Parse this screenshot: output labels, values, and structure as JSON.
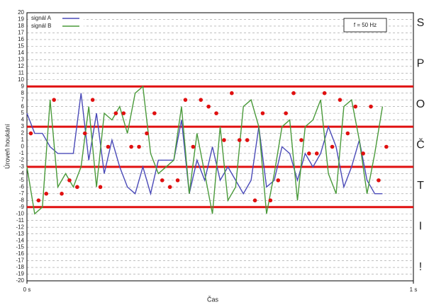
{
  "chart_data": {
    "type": "line",
    "xlabel": "Čas",
    "ylabel": "Úroveň houkání",
    "x": [
      0,
      0.02,
      0.04,
      0.06,
      0.08,
      0.1,
      0.12,
      0.14,
      0.16,
      0.18,
      0.2,
      0.22,
      0.24,
      0.26,
      0.28,
      0.3,
      0.32,
      0.34,
      0.36,
      0.38,
      0.4,
      0.42,
      0.44,
      0.46,
      0.48,
      0.5,
      0.52,
      0.54,
      0.56,
      0.58,
      0.6,
      0.62,
      0.64,
      0.66,
      0.68,
      0.7,
      0.72,
      0.74,
      0.76,
      0.78,
      0.8,
      0.82,
      0.84,
      0.86,
      0.88,
      0.9,
      0.92
    ],
    "series": [
      {
        "name": "signál A",
        "color": "#4a4ab8",
        "values": [
          5,
          2,
          2,
          0,
          -1,
          -1,
          -1,
          8,
          -2,
          5,
          -4,
          1,
          -3,
          -6,
          -7,
          -3,
          -7,
          -2,
          -2,
          -2,
          4,
          -7,
          -2,
          -5,
          0,
          -5,
          -3,
          -5,
          -7,
          -5,
          3,
          -6,
          -5,
          0,
          -1,
          -5,
          -1,
          -3,
          -1,
          3,
          0,
          -6,
          -3,
          1,
          -5,
          -7,
          -7
        ]
      },
      {
        "name": "signál B",
        "color": "#4a9a3a",
        "values": [
          -3,
          -10,
          -9,
          7,
          -6,
          -4,
          -6,
          -3,
          6,
          -6,
          5,
          4,
          6,
          2,
          8,
          9,
          -1,
          -4,
          -3,
          -2,
          6,
          -7,
          2,
          -4,
          -10,
          3,
          -8,
          -6,
          6,
          7,
          3,
          -10,
          -4,
          3,
          4,
          -8,
          3,
          4,
          7,
          -4,
          -7,
          6,
          7,
          1,
          -7,
          -1,
          6
        ]
      }
    ],
    "points": {
      "color": "#e01010",
      "x": [
        0.01,
        0.03,
        0.05,
        0.07,
        0.09,
        0.11,
        0.13,
        0.15,
        0.17,
        0.19,
        0.21,
        0.23,
        0.25,
        0.27,
        0.29,
        0.31,
        0.33,
        0.35,
        0.37,
        0.39,
        0.41,
        0.43,
        0.45,
        0.47,
        0.49,
        0.51,
        0.53,
        0.55,
        0.57,
        0.59,
        0.61,
        0.63,
        0.65,
        0.67,
        0.69,
        0.71,
        0.73,
        0.75,
        0.77,
        0.79,
        0.81,
        0.83,
        0.85,
        0.87,
        0.89,
        0.91,
        0.93
      ],
      "y": [
        2,
        -8,
        -7,
        7,
        -7,
        -5,
        -6,
        2,
        7,
        -6,
        0,
        5,
        5,
        0,
        0,
        2,
        5,
        -5,
        -6,
        -5,
        7,
        0,
        7,
        6,
        5,
        1,
        8,
        1,
        1,
        -8,
        5,
        -8,
        -5,
        5,
        8,
        1,
        -1,
        -1,
        8,
        0,
        7,
        2,
        6,
        -1,
        6,
        -5,
        0
      ]
    },
    "thresholds": {
      "color": "#e01010",
      "values": [
        9,
        3,
        -3,
        -9
      ]
    },
    "annotation": "f = 50 Hz",
    "side_text": [
      "S",
      "P",
      "O",
      "Č",
      "T",
      "I",
      "!"
    ],
    "xlim": [
      0,
      1
    ],
    "xticks": [
      {
        "value": 0,
        "label": "0 s"
      },
      {
        "value": 1,
        "label": "1 s"
      }
    ],
    "ylim": [
      -20,
      20
    ],
    "yticks": [
      -20,
      -19,
      -18,
      -17,
      -16,
      -15,
      -14,
      -13,
      -12,
      -11,
      -10,
      -9,
      -8,
      -7,
      -6,
      -5,
      -4,
      -3,
      -2,
      -1,
      0,
      1,
      2,
      3,
      4,
      5,
      6,
      7,
      8,
      9,
      10,
      11,
      12,
      13,
      14,
      15,
      16,
      17,
      18,
      19,
      20
    ],
    "grid": true,
    "legend": "upper-left"
  }
}
